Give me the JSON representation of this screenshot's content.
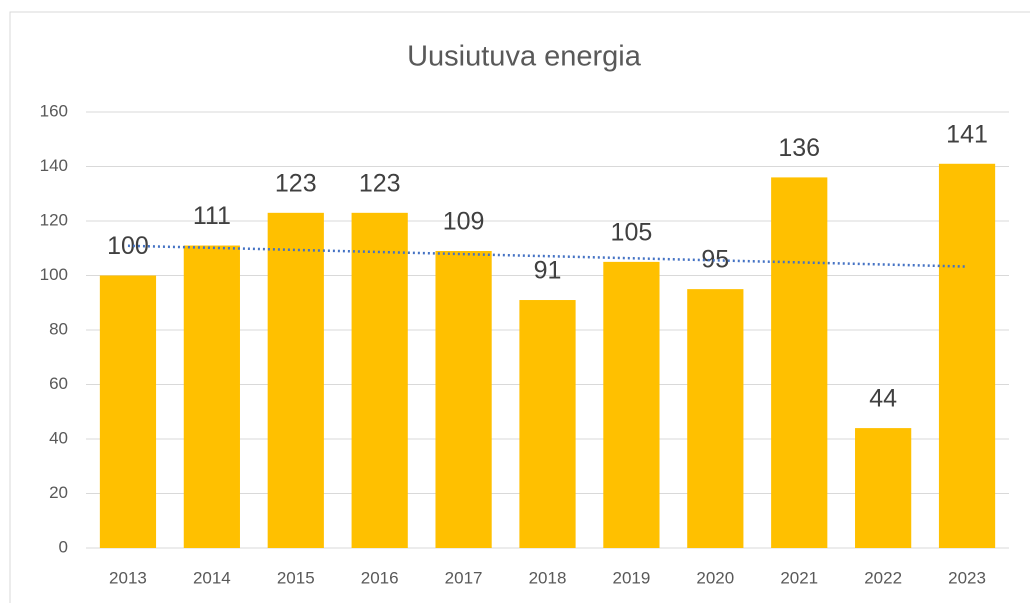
{
  "chart_data": {
    "type": "bar",
    "title": "Uusiutuva energia",
    "categories": [
      "2013",
      "2014",
      "2015",
      "2016",
      "2017",
      "2018",
      "2019",
      "2020",
      "2021",
      "2022",
      "2023"
    ],
    "values": [
      100,
      111,
      123,
      123,
      109,
      91,
      105,
      95,
      136,
      44,
      141
    ],
    "color": "#ffc000",
    "ylim": [
      0,
      160
    ],
    "yticks": [
      0,
      20,
      40,
      60,
      80,
      100,
      120,
      140,
      160
    ],
    "grid": true,
    "trendline": {
      "type": "linear",
      "color": "#4472c4"
    }
  }
}
